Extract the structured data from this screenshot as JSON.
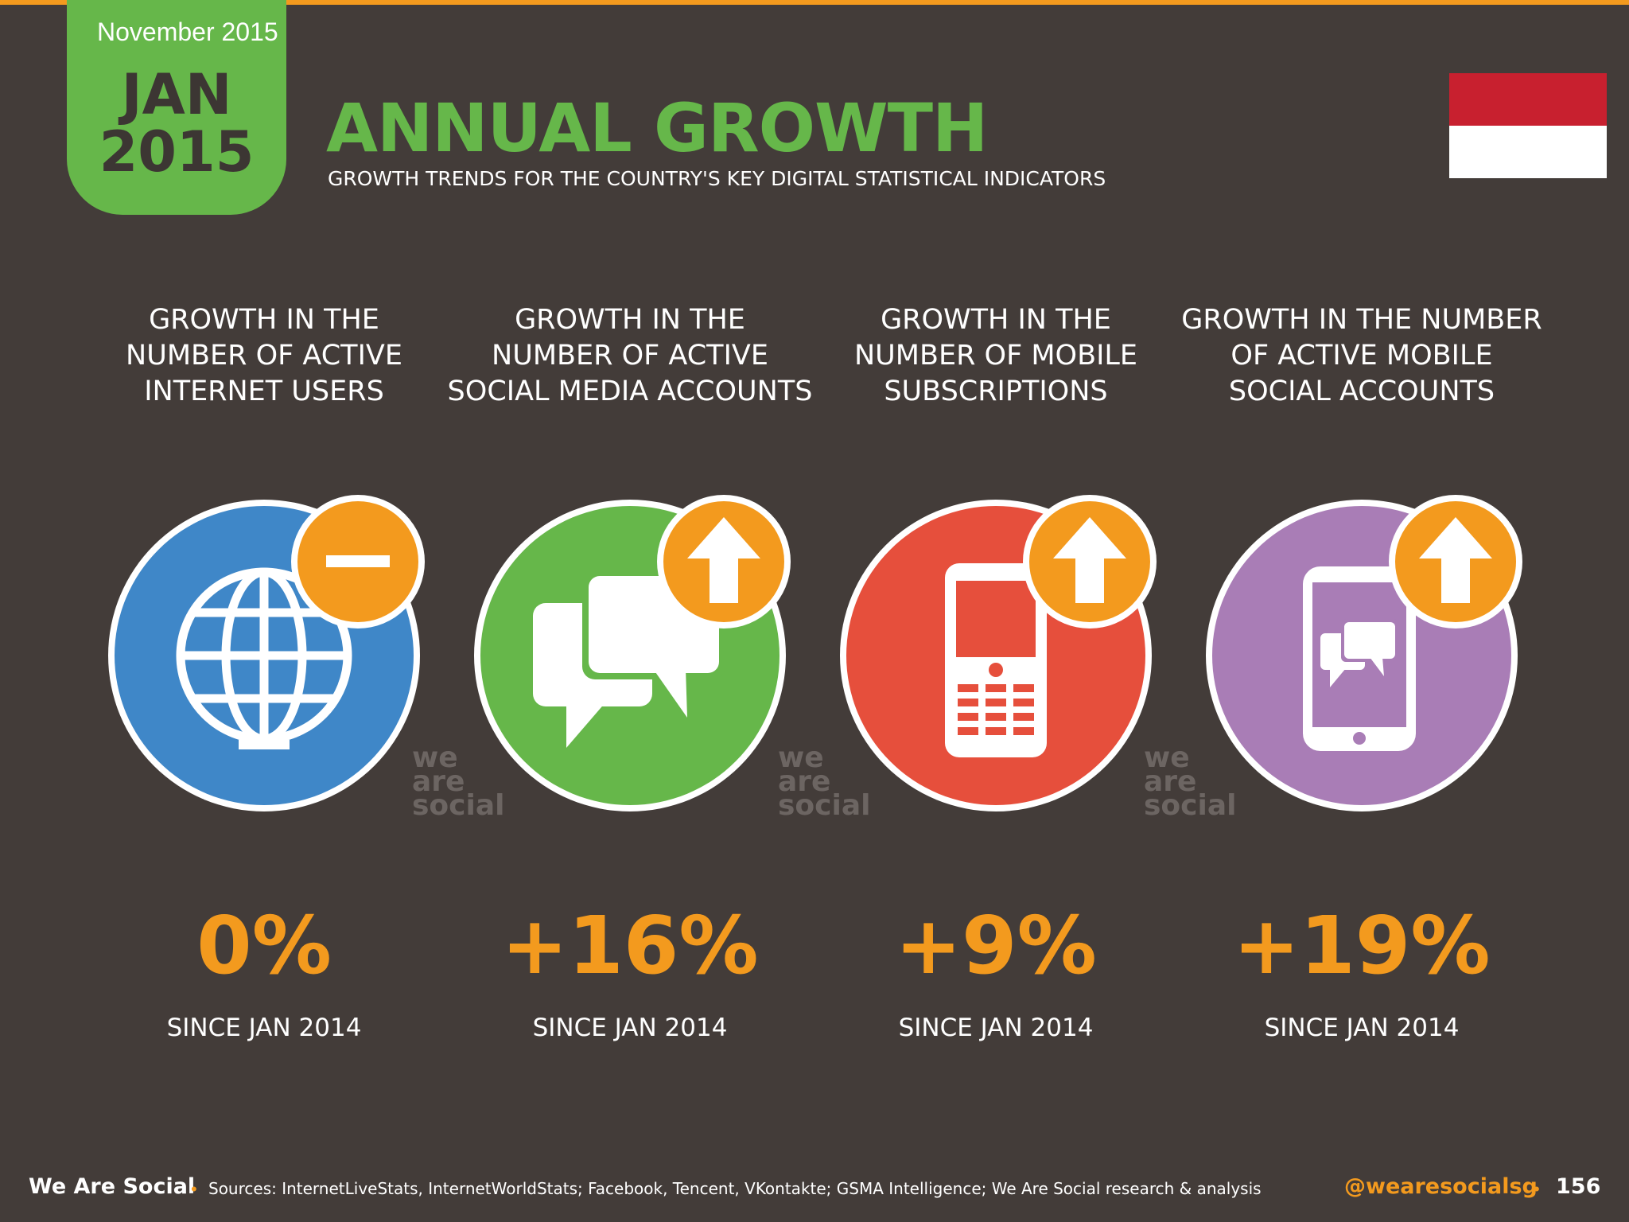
{
  "header": {
    "report_date": "November 2015",
    "tab_month": "JAN",
    "tab_year": "2015",
    "title": "ANNUAL GROWTH",
    "subtitle": "GROWTH TRENDS FOR THE COUNTRY'S KEY DIGITAL STATISTICAL INDICATORS",
    "flag": {
      "top_color": "#c8202f",
      "bottom_color": "#ffffff"
    }
  },
  "indicators": [
    {
      "label_lines": [
        "GROWTH IN THE",
        "NUMBER OF ACTIVE",
        "INTERNET USERS"
      ],
      "value": "0%",
      "since": "SINCE JAN 2014",
      "icon": "globe-icon",
      "badge": "minus-icon",
      "color": "#3f87c8"
    },
    {
      "label_lines": [
        "GROWTH IN THE",
        "NUMBER OF ACTIVE",
        "SOCIAL MEDIA ACCOUNTS"
      ],
      "value": "+16%",
      "since": "SINCE JAN 2014",
      "icon": "chat-bubbles-icon",
      "badge": "arrow-up-icon",
      "color": "#66b74a"
    },
    {
      "label_lines": [
        "GROWTH IN THE",
        "NUMBER OF MOBILE",
        "SUBSCRIPTIONS"
      ],
      "value": "+9%",
      "since": "SINCE JAN 2014",
      "icon": "mobile-phone-icon",
      "badge": "arrow-up-icon",
      "color": "#e64f3c"
    },
    {
      "label_lines": [
        "GROWTH IN THE NUMBER",
        "OF ACTIVE MOBILE",
        "SOCIAL ACCOUNTS"
      ],
      "value": "+19%",
      "since": "SINCE JAN 2014",
      "icon": "smartphone-chat-icon",
      "badge": "arrow-up-icon",
      "color": "#a97db6"
    }
  ],
  "watermark": [
    "we",
    "are",
    "social"
  ],
  "footer": {
    "brand": "We Are Social",
    "sources": "Sources: InternetLiveStats, InternetWorldStats; Facebook, Tencent, VKontakte; GSMA Intelligence; We Are Social research & analysis",
    "handle": "@wearesocialsg",
    "page_number": "156"
  },
  "colors": {
    "background": "#433c39",
    "accent_green": "#66b74a",
    "accent_orange": "#f39a1e"
  }
}
